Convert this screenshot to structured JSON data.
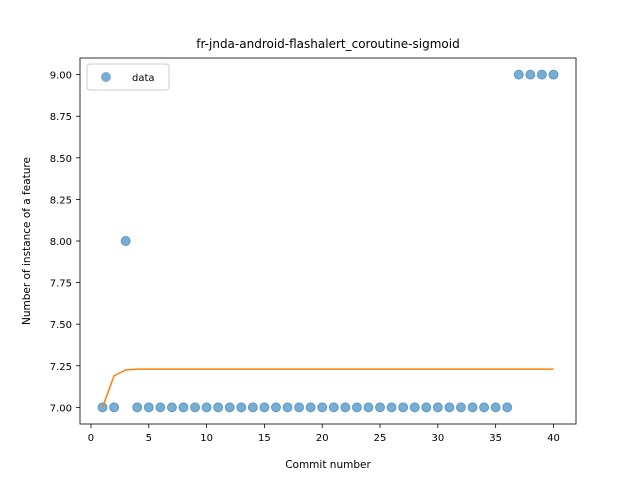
{
  "chart_data": {
    "type": "scatter",
    "title": "fr-jnda-android-flashalert_coroutine-sigmoid",
    "xlabel": "Commit number",
    "ylabel": "Number of instance of a feature",
    "xlim": [
      -0.95,
      41.95
    ],
    "ylim": [
      6.9,
      9.1
    ],
    "xticks": [
      0,
      5,
      10,
      15,
      20,
      25,
      30,
      35,
      40
    ],
    "yticks": [
      7.0,
      7.25,
      7.5,
      7.75,
      8.0,
      8.25,
      8.5,
      8.75,
      9.0
    ],
    "ytick_labels": [
      "7.00",
      "7.25",
      "7.50",
      "7.75",
      "8.00",
      "8.25",
      "8.50",
      "8.75",
      "9.00"
    ],
    "legend_position": "upper-left",
    "grid": false,
    "series": [
      {
        "name": "data",
        "kind": "scatter",
        "color": "#1f77b4",
        "x": [
          1,
          2,
          3,
          4,
          5,
          6,
          7,
          8,
          9,
          10,
          11,
          12,
          13,
          14,
          15,
          16,
          17,
          18,
          19,
          20,
          21,
          22,
          23,
          24,
          25,
          26,
          27,
          28,
          29,
          30,
          31,
          32,
          33,
          34,
          35,
          36,
          37,
          38,
          39,
          40
        ],
        "y": [
          7,
          7,
          8,
          7,
          7,
          7,
          7,
          7,
          7,
          7,
          7,
          7,
          7,
          7,
          7,
          7,
          7,
          7,
          7,
          7,
          7,
          7,
          7,
          7,
          7,
          7,
          7,
          7,
          7,
          7,
          7,
          7,
          7,
          7,
          7,
          7,
          9,
          9,
          9,
          9
        ]
      },
      {
        "kind": "line",
        "color": "#ff7f0e",
        "x": [
          1,
          2,
          3,
          4,
          5,
          6,
          8,
          10,
          15,
          20,
          25,
          30,
          35,
          40
        ],
        "y": [
          7.0,
          7.19,
          7.225,
          7.23,
          7.23,
          7.23,
          7.23,
          7.23,
          7.23,
          7.23,
          7.23,
          7.23,
          7.23,
          7.23
        ]
      }
    ]
  }
}
